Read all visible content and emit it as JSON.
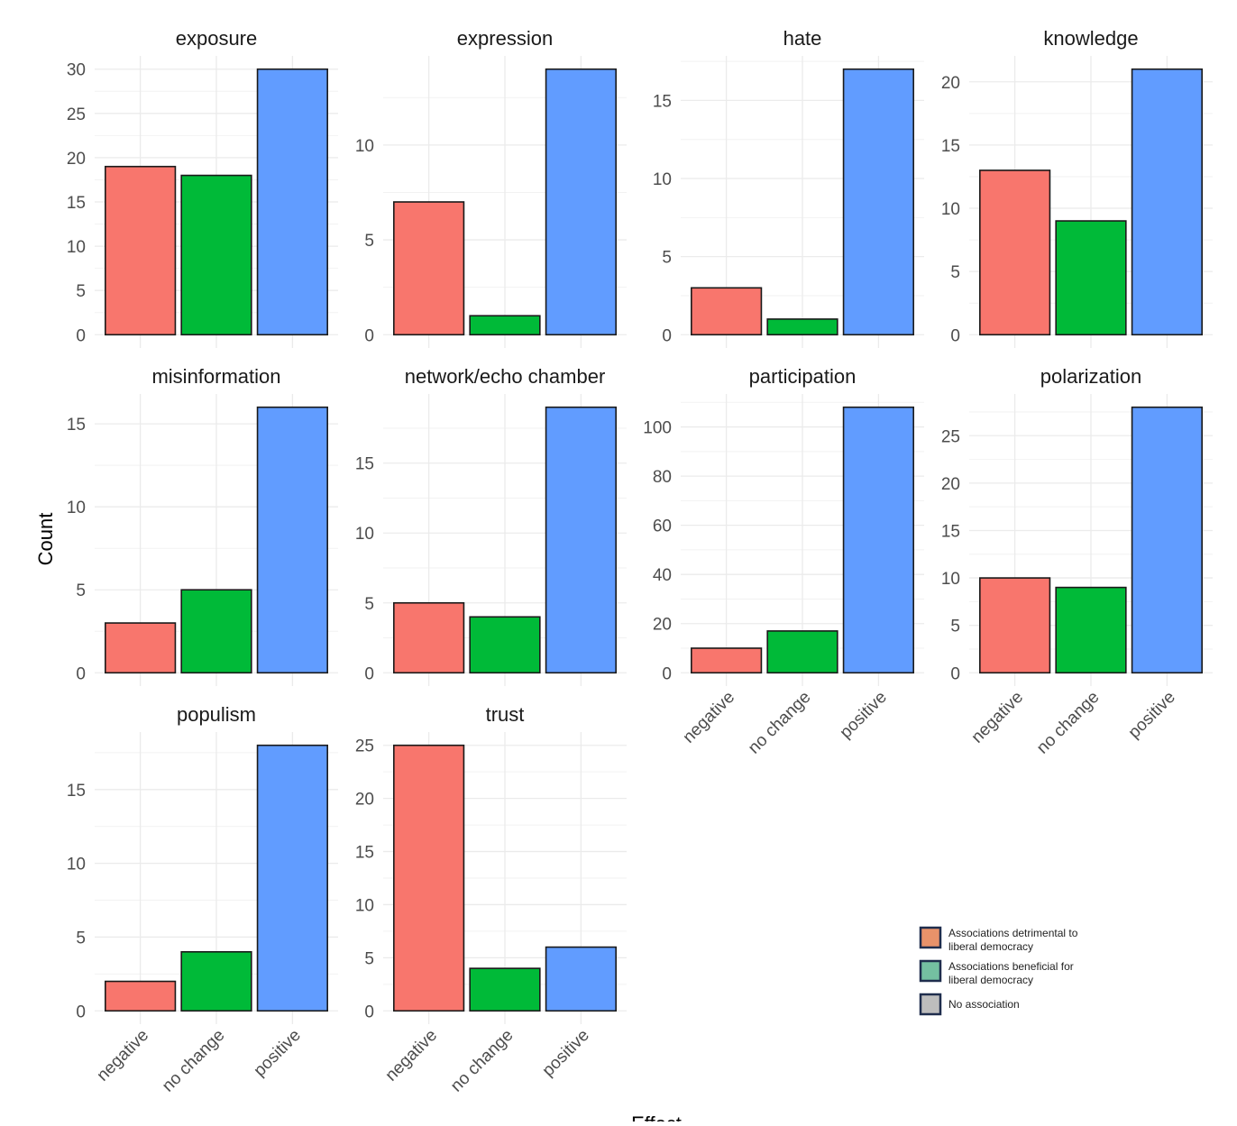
{
  "chart_data": {
    "type": "bar",
    "facet": "wrap",
    "xlabel": "Effect",
    "ylabel": "Count",
    "categories": [
      "negative",
      "no change",
      "positive"
    ],
    "colors": {
      "negative": "#F8766D",
      "no change": "#00BA38",
      "positive": "#619CFF"
    },
    "grid": true,
    "panels": [
      {
        "title": "exposure",
        "values": [
          19,
          18,
          30
        ],
        "ticks": [
          0,
          5,
          10,
          15,
          20,
          25,
          30
        ]
      },
      {
        "title": "expression",
        "values": [
          7,
          1,
          14
        ],
        "ticks": [
          0,
          5,
          10
        ]
      },
      {
        "title": "hate",
        "values": [
          3,
          1,
          17
        ],
        "ticks": [
          0,
          5,
          10,
          15
        ]
      },
      {
        "title": "knowledge",
        "values": [
          13,
          9,
          21
        ],
        "ticks": [
          0,
          5,
          10,
          15,
          20
        ]
      },
      {
        "title": "misinformation",
        "values": [
          3,
          5,
          16
        ],
        "ticks": [
          0,
          5,
          10,
          15
        ]
      },
      {
        "title": "network/echo chamber",
        "values": [
          5,
          4,
          19
        ],
        "ticks": [
          0,
          5,
          10,
          15
        ]
      },
      {
        "title": "participation",
        "values": [
          10,
          17,
          108
        ],
        "ticks": [
          0,
          20,
          40,
          60,
          80,
          100
        ]
      },
      {
        "title": "polarization",
        "values": [
          10,
          9,
          28
        ],
        "ticks": [
          0,
          5,
          10,
          15,
          20,
          25
        ]
      },
      {
        "title": "populism",
        "values": [
          2,
          4,
          18
        ],
        "ticks": [
          0,
          5,
          10,
          15
        ]
      },
      {
        "title": "trust",
        "values": [
          25,
          4,
          6
        ],
        "ticks": [
          0,
          5,
          10,
          15,
          20,
          25
        ]
      }
    ],
    "legend": {
      "placement": "bottom-right",
      "items": [
        {
          "label": "Associations detrimental to liberal democracy",
          "color": "#E8926A"
        },
        {
          "label": "Associations beneficial for liberal democracy",
          "color": "#74BFA1"
        },
        {
          "label": "No association",
          "color": "#BDBDBD"
        }
      ]
    }
  }
}
